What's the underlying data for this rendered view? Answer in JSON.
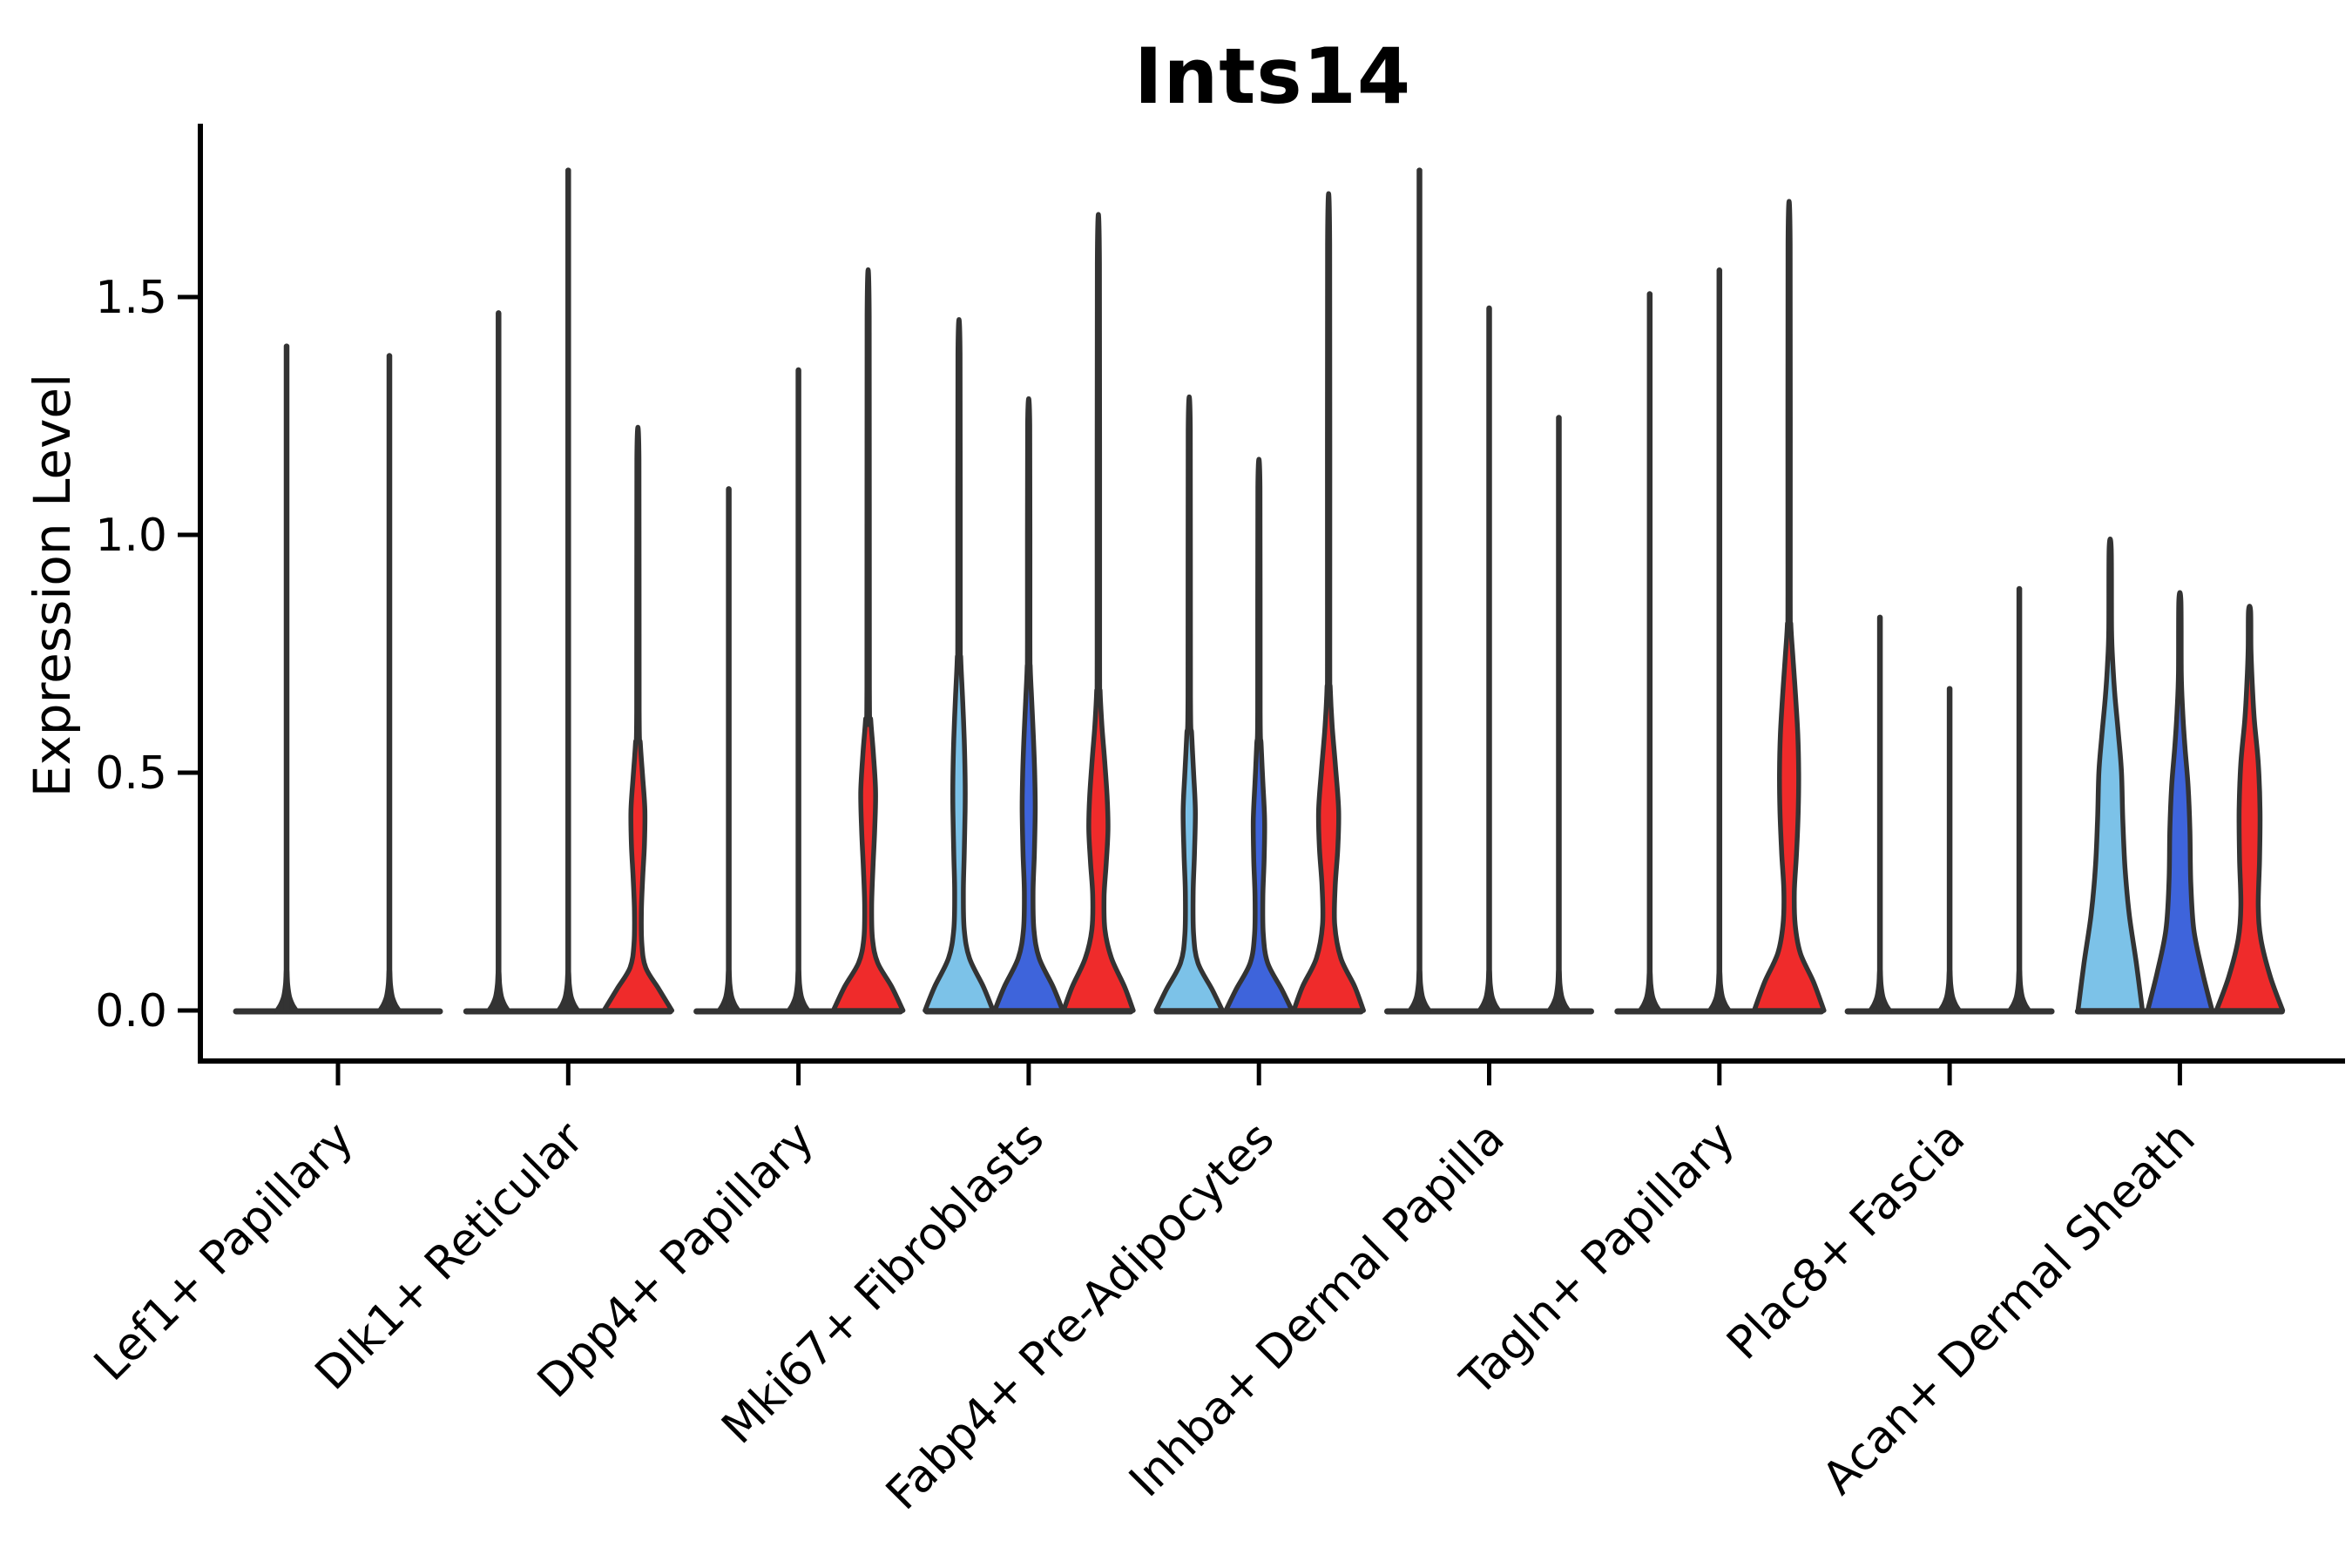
{
  "chart_data": {
    "type": "violin",
    "title": "Ints14",
    "ylabel": "Expression Level",
    "xlabel": "",
    "ylim": [
      -0.11,
      1.86
    ],
    "grid": false,
    "legend": "none",
    "background": "#ffffff",
    "outline_color": "#333333",
    "axis_color": "#000000",
    "yticks": [
      {
        "value": 0.0,
        "label": "0.0"
      },
      {
        "value": 0.5,
        "label": "0.5"
      },
      {
        "value": 1.0,
        "label": "1.0"
      },
      {
        "value": 1.5,
        "label": "1.5"
      }
    ],
    "categories": [
      "Lef1+ Papillary",
      "Dlk1+ Reticular",
      "Dpp4+ Papillary",
      "Mki67+ Fibroblasts",
      "Fabp4+ Pre-Adipocytes",
      "Inhba+ Dermal Papilla",
      "Tagln+ Papillary",
      "Plac8+ Fascia",
      "Acan+ Dermal Sheath"
    ],
    "series": [
      {
        "key": "light-blue",
        "color": "#7CC2E8"
      },
      {
        "key": "dark-blue",
        "color": "#3E64DB"
      },
      {
        "key": "red",
        "color": "#EF2B2B"
      }
    ],
    "violins": [
      {
        "category": 0,
        "series": 0,
        "offset": -59,
        "max": 1.4,
        "shape": "spike"
      },
      {
        "category": 0,
        "series": 1,
        "offset": 59,
        "max": 1.38,
        "shape": "spike"
      },
      {
        "category": 1,
        "series": 0,
        "offset": -80,
        "max": 1.47,
        "shape": "spike"
      },
      {
        "category": 1,
        "series": 1,
        "offset": 0,
        "max": 1.77,
        "shape": "spike"
      },
      {
        "category": 1,
        "series": 2,
        "offset": 80,
        "max": 1.16,
        "shape": "bulged",
        "profile": [
          [
            0,
            39
          ],
          [
            0.045,
            24
          ],
          [
            0.09,
            9
          ],
          [
            0.14,
            4.5
          ],
          [
            0.21,
            4
          ],
          [
            0.28,
            5.5
          ],
          [
            0.35,
            7.5
          ],
          [
            0.42,
            8
          ],
          [
            0.49,
            5.5
          ],
          [
            0.56,
            2.8
          ],
          [
            0.63,
            1.4
          ],
          [
            1.16,
            1.2
          ]
        ]
      },
      {
        "category": 2,
        "series": 0,
        "offset": -80,
        "max": 1.1,
        "shape": "spike"
      },
      {
        "category": 2,
        "series": 1,
        "offset": 0,
        "max": 1.35,
        "shape": "spike"
      },
      {
        "category": 2,
        "series": 2,
        "offset": 80,
        "max": 1.46,
        "shape": "bulged",
        "profile": [
          [
            0,
            40
          ],
          [
            0.05,
            27
          ],
          [
            0.1,
            11
          ],
          [
            0.15,
            5
          ],
          [
            0.22,
            4
          ],
          [
            0.3,
            5.5
          ],
          [
            0.38,
            7.5
          ],
          [
            0.46,
            8.5
          ],
          [
            0.54,
            6
          ],
          [
            0.61,
            3
          ],
          [
            0.68,
            1.4
          ],
          [
            1.46,
            1.2
          ]
        ]
      },
      {
        "category": 3,
        "series": 0,
        "offset": -80,
        "max": 1.38,
        "shape": "bulged",
        "profile": [
          [
            0,
            39
          ],
          [
            0.05,
            28
          ],
          [
            0.11,
            12
          ],
          [
            0.17,
            6
          ],
          [
            0.25,
            5
          ],
          [
            0.33,
            6
          ],
          [
            0.42,
            7
          ],
          [
            0.49,
            7
          ],
          [
            0.57,
            6
          ],
          [
            0.66,
            4
          ],
          [
            0.74,
            2
          ],
          [
            0.8,
            1.4
          ],
          [
            1.38,
            1.2
          ]
        ]
      },
      {
        "category": 3,
        "series": 1,
        "offset": 0,
        "max": 1.23,
        "shape": "bulged",
        "profile": [
          [
            0,
            39
          ],
          [
            0.05,
            28
          ],
          [
            0.11,
            12
          ],
          [
            0.17,
            6
          ],
          [
            0.25,
            5
          ],
          [
            0.33,
            6.5
          ],
          [
            0.42,
            7.5
          ],
          [
            0.49,
            7
          ],
          [
            0.57,
            5.5
          ],
          [
            0.65,
            3.5
          ],
          [
            0.72,
            1.8
          ],
          [
            0.78,
            1.4
          ],
          [
            1.23,
            1.2
          ]
        ]
      },
      {
        "category": 3,
        "series": 2,
        "offset": 80,
        "max": 1.57,
        "shape": "bulged",
        "profile": [
          [
            0,
            40
          ],
          [
            0.05,
            30
          ],
          [
            0.11,
            15
          ],
          [
            0.17,
            7.5
          ],
          [
            0.24,
            6.5
          ],
          [
            0.31,
            9
          ],
          [
            0.38,
            11
          ],
          [
            0.45,
            10
          ],
          [
            0.53,
            7
          ],
          [
            0.6,
            4
          ],
          [
            0.67,
            2
          ],
          [
            0.74,
            1.4
          ],
          [
            1.57,
            1.2
          ]
        ]
      },
      {
        "category": 4,
        "series": 0,
        "offset": -80,
        "max": 1.22,
        "shape": "bulged",
        "profile": [
          [
            0,
            38
          ],
          [
            0.045,
            26
          ],
          [
            0.1,
            10
          ],
          [
            0.16,
            5
          ],
          [
            0.25,
            4.5
          ],
          [
            0.33,
            6
          ],
          [
            0.42,
            7
          ],
          [
            0.5,
            5
          ],
          [
            0.58,
            2.8
          ],
          [
            0.66,
            1.4
          ],
          [
            1.22,
            1.2
          ]
        ]
      },
      {
        "category": 4,
        "series": 1,
        "offset": 0,
        "max": 1.1,
        "shape": "bulged",
        "profile": [
          [
            0,
            38
          ],
          [
            0.045,
            26
          ],
          [
            0.1,
            10
          ],
          [
            0.16,
            5
          ],
          [
            0.24,
            4.5
          ],
          [
            0.32,
            6
          ],
          [
            0.4,
            6.5
          ],
          [
            0.48,
            4.5
          ],
          [
            0.56,
            2.5
          ],
          [
            0.63,
            1.4
          ],
          [
            1.1,
            1.2
          ]
        ]
      },
      {
        "category": 4,
        "series": 2,
        "offset": 80,
        "max": 1.61,
        "shape": "bulged",
        "profile": [
          [
            0,
            40
          ],
          [
            0.05,
            30
          ],
          [
            0.11,
            14
          ],
          [
            0.18,
            7
          ],
          [
            0.26,
            7.5
          ],
          [
            0.34,
            10.5
          ],
          [
            0.42,
            11.5
          ],
          [
            0.51,
            8
          ],
          [
            0.6,
            4
          ],
          [
            0.68,
            1.8
          ],
          [
            0.75,
            1.3
          ],
          [
            1.61,
            1.2
          ]
        ]
      },
      {
        "category": 5,
        "series": 0,
        "offset": -80,
        "max": 1.77,
        "shape": "spike"
      },
      {
        "category": 5,
        "series": 1,
        "offset": 0,
        "max": 1.48,
        "shape": "spike"
      },
      {
        "category": 5,
        "series": 2,
        "offset": 80,
        "max": 1.25,
        "shape": "spike"
      },
      {
        "category": 6,
        "series": 0,
        "offset": -80,
        "max": 1.51,
        "shape": "spike"
      },
      {
        "category": 6,
        "series": 1,
        "offset": 0,
        "max": 1.56,
        "shape": "spike"
      },
      {
        "category": 6,
        "series": 2,
        "offset": 80,
        "max": 1.61,
        "shape": "bulged",
        "profile": [
          [
            0,
            40
          ],
          [
            0.06,
            28
          ],
          [
            0.12,
            13
          ],
          [
            0.18,
            7
          ],
          [
            0.25,
            6
          ],
          [
            0.33,
            8.5
          ],
          [
            0.42,
            10.5
          ],
          [
            0.5,
            11
          ],
          [
            0.58,
            10
          ],
          [
            0.66,
            7.5
          ],
          [
            0.74,
            4.5
          ],
          [
            0.81,
            2
          ],
          [
            0.88,
            1.3
          ],
          [
            1.61,
            1.2
          ]
        ]
      },
      {
        "category": 7,
        "series": 0,
        "offset": -80,
        "max": 0.83,
        "shape": "spike"
      },
      {
        "category": 7,
        "series": 1,
        "offset": 0,
        "max": 0.68,
        "shape": "spike"
      },
      {
        "category": 7,
        "series": 2,
        "offset": 80,
        "max": 0.89,
        "shape": "spike"
      },
      {
        "category": 8,
        "series": 0,
        "offset": -80,
        "max": 0.97,
        "shape": "bulged",
        "profile": [
          [
            0,
            37
          ],
          [
            0.1,
            30
          ],
          [
            0.2,
            22
          ],
          [
            0.3,
            17
          ],
          [
            0.4,
            14.5
          ],
          [
            0.5,
            13
          ],
          [
            0.58,
            9.5
          ],
          [
            0.66,
            5.5
          ],
          [
            0.73,
            3
          ],
          [
            0.8,
            1.6
          ],
          [
            0.97,
            1.2
          ]
        ]
      },
      {
        "category": 8,
        "series": 1,
        "offset": 0,
        "max": 0.86,
        "shape": "bulged",
        "profile": [
          [
            0,
            37
          ],
          [
            0.08,
            26
          ],
          [
            0.17,
            16
          ],
          [
            0.27,
            12.5
          ],
          [
            0.38,
            11.5
          ],
          [
            0.47,
            9.5
          ],
          [
            0.55,
            6
          ],
          [
            0.63,
            3.2
          ],
          [
            0.71,
            1.6
          ],
          [
            0.86,
            1.2
          ]
        ]
      },
      {
        "category": 8,
        "series": 2,
        "offset": 80,
        "max": 0.84,
        "shape": "bulged",
        "profile": [
          [
            0,
            38
          ],
          [
            0.07,
            24
          ],
          [
            0.15,
            13
          ],
          [
            0.22,
            10
          ],
          [
            0.32,
            11.5
          ],
          [
            0.42,
            12
          ],
          [
            0.52,
            10
          ],
          [
            0.61,
            5.5
          ],
          [
            0.69,
            3
          ],
          [
            0.76,
            1.6
          ],
          [
            0.84,
            1.2
          ]
        ]
      }
    ]
  }
}
